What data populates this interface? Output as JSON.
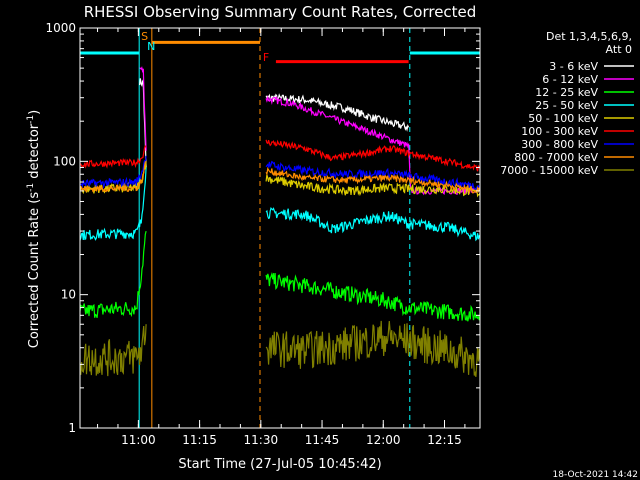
{
  "chart_data": {
    "type": "line",
    "title": "RHESSI Observing Summary Count Rates, Corrected",
    "xlabel": "Start Time (27-Jul-05 10:45:42)",
    "ylabel_main": "Corrected Count Rate (s",
    "ylabel_sup1": "-1",
    "ylabel_mid": " detector",
    "ylabel_sup2": "-1",
    "ylabel_end": ")",
    "yscale": "log",
    "ylim": [
      1,
      1000
    ],
    "xlim_minutes": [
      0,
      98
    ],
    "x_ticks": [
      "11:00",
      "11:15",
      "11:30",
      "11:45",
      "12:00",
      "12:15"
    ],
    "x_tick_minutes": [
      14.3,
      29.3,
      44.3,
      59.3,
      74.3,
      89.3
    ],
    "y_ticks": [
      "1",
      "10",
      "100",
      "1000"
    ],
    "y_tick_values": [
      1,
      10,
      100,
      1000
    ],
    "legend_header": [
      "Det 1,3,4,5,6,9,",
      "Att 0"
    ],
    "legend_position": "top-right",
    "timestamp": "18-Oct-2021 14:42",
    "flags": {
      "saa_label": "S",
      "night_label": "N",
      "flare_label": "F",
      "saa_color": "#ff8c00",
      "night_color": "#00ffff",
      "flare_color": "#ff0000",
      "night_periods": [
        [
          0,
          14.5
        ],
        [
          80.8,
          98
        ]
      ],
      "saa_period": [
        17.6,
        44.1
      ],
      "flare_period": [
        48,
        80.5
      ]
    },
    "series": [
      {
        "name": "3 - 6 keV",
        "color": "#ffffff",
        "segments": [
          [
            [
              14.6,
              400
            ],
            [
              15.5,
              380
            ],
            [
              16.2,
              90
            ]
          ],
          [
            [
              45.6,
              300
            ],
            [
              55,
              290
            ],
            [
              65,
              250
            ],
            [
              72,
              210
            ],
            [
              77,
              190
            ],
            [
              80.5,
              180
            ]
          ]
        ]
      },
      {
        "name": "6 - 12 keV",
        "color": "#ff00ff",
        "segments": [
          [
            [
              14.6,
              500
            ],
            [
              15.5,
              480
            ],
            [
              16.2,
              120
            ]
          ],
          [
            [
              45.6,
              295
            ],
            [
              52,
              270
            ],
            [
              60,
              220
            ],
            [
              68,
              180
            ],
            [
              75,
              150
            ],
            [
              80.5,
              130
            ],
            [
              81,
              60
            ],
            [
              98,
              60
            ]
          ]
        ]
      },
      {
        "name": "12 - 25 keV",
        "color": "#00ff00",
        "segments": [
          [
            [
              0,
              7.5
            ],
            [
              13.8,
              8
            ],
            [
              15,
              14
            ],
            [
              16.2,
              30
            ]
          ],
          [
            [
              45.6,
              13
            ],
            [
              60,
              11
            ],
            [
              75,
              9
            ],
            [
              80.5,
              8
            ],
            [
              98,
              7
            ]
          ]
        ]
      },
      {
        "name": "25 - 50 keV",
        "color": "#00ffff",
        "segments": [
          [
            [
              0,
              28
            ],
            [
              13.8,
              29
            ],
            [
              15,
              35
            ],
            [
              16.2,
              90
            ]
          ],
          [
            [
              45.6,
              41
            ],
            [
              55,
              40
            ],
            [
              62,
              31
            ],
            [
              70,
              36
            ],
            [
              76,
              39
            ],
            [
              80.5,
              34
            ],
            [
              90,
              32
            ],
            [
              98,
              27
            ]
          ]
        ]
      },
      {
        "name": "50 - 100 keV",
        "color": "#ddcc00",
        "segments": [
          [
            [
              0,
              62
            ],
            [
              13.8,
              63
            ],
            [
              15,
              70
            ],
            [
              16.2,
              100
            ]
          ],
          [
            [
              45.6,
              75
            ],
            [
              55,
              65
            ],
            [
              65,
              60
            ],
            [
              75,
              63
            ],
            [
              80.5,
              62
            ],
            [
              90,
              62
            ],
            [
              98,
              58
            ]
          ]
        ]
      },
      {
        "name": "100 - 300 keV",
        "color": "#ff0000",
        "segments": [
          [
            [
              0,
              95
            ],
            [
              13.8,
              98
            ],
            [
              15,
              105
            ],
            [
              16.2,
              130
            ]
          ],
          [
            [
              45.6,
              140
            ],
            [
              55,
              125
            ],
            [
              62,
              105
            ],
            [
              70,
              115
            ],
            [
              76,
              125
            ],
            [
              80.5,
              115
            ],
            [
              90,
              100
            ],
            [
              98,
              88
            ]
          ]
        ]
      },
      {
        "name": "300 - 800 keV",
        "color": "#0000ff",
        "segments": [
          [
            [
              0,
              68
            ],
            [
              13.8,
              70
            ],
            [
              15,
              80
            ],
            [
              16.2,
              110
            ]
          ],
          [
            [
              45.6,
              95
            ],
            [
              55,
              85
            ],
            [
              65,
              80
            ],
            [
              75,
              82
            ],
            [
              80.5,
              78
            ],
            [
              90,
              70
            ],
            [
              98,
              65
            ]
          ]
        ]
      },
      {
        "name": "800 - 7000 keV",
        "color": "#ff8c00",
        "segments": [
          [
            [
              0,
              62
            ],
            [
              13.8,
              63
            ],
            [
              15,
              70
            ],
            [
              16.2,
              100
            ]
          ],
          [
            [
              45.6,
              85
            ],
            [
              55,
              75
            ],
            [
              65,
              72
            ],
            [
              75,
              75
            ],
            [
              80.5,
              72
            ],
            [
              90,
              66
            ],
            [
              98,
              60
            ]
          ]
        ]
      },
      {
        "name": "7000 - 15000 keV",
        "color": "#808000",
        "segments": [
          [
            [
              0,
              3.3
            ],
            [
              13.8,
              3.4
            ],
            [
              15,
              3.8
            ],
            [
              16.2,
              6
            ]
          ],
          [
            [
              45.6,
              4
            ],
            [
              55,
              3.8
            ],
            [
              65,
              4.2
            ],
            [
              75,
              4.8
            ],
            [
              80.5,
              4.5
            ],
            [
              90,
              3.8
            ],
            [
              98,
              3.2
            ]
          ]
        ]
      }
    ]
  }
}
